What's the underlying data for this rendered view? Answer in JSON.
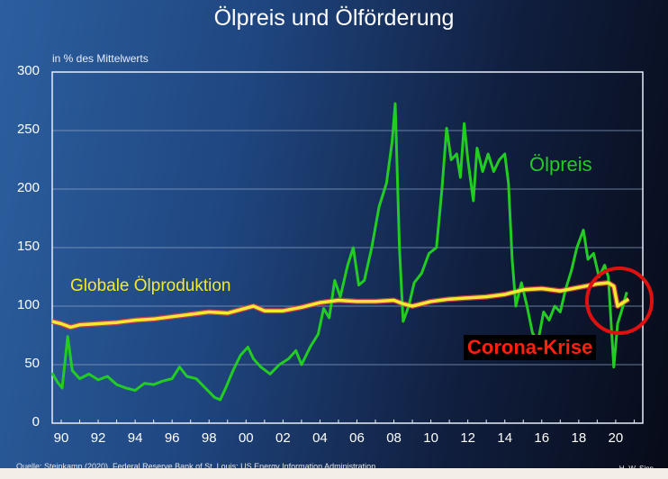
{
  "chart_data": {
    "type": "line",
    "title": "Ölpreis und Ölförderung",
    "ylabel": "in % des Mittelwerts",
    "xlabel": "",
    "ylim": [
      0,
      300
    ],
    "xlim": [
      1989.5,
      2021.5
    ],
    "yticks": [
      "0",
      "50",
      "100",
      "150",
      "200",
      "250",
      "300"
    ],
    "xticks": [
      "90",
      "92",
      "94",
      "96",
      "98",
      "00",
      "02",
      "04",
      "06",
      "08",
      "10",
      "12",
      "14",
      "16",
      "18",
      "20"
    ],
    "grid": true,
    "series": [
      {
        "name": "Ölpreis",
        "color": "#22cc22",
        "points": [
          [
            1989.5,
            43
          ],
          [
            1989.8,
            35
          ],
          [
            1990.05,
            30
          ],
          [
            1990.35,
            74
          ],
          [
            1990.6,
            45
          ],
          [
            1991,
            38
          ],
          [
            1991.5,
            42
          ],
          [
            1992,
            37
          ],
          [
            1992.5,
            40
          ],
          [
            1993,
            33
          ],
          [
            1993.5,
            30
          ],
          [
            1994,
            28
          ],
          [
            1994.5,
            34
          ],
          [
            1995,
            33
          ],
          [
            1995.5,
            36
          ],
          [
            1996,
            38
          ],
          [
            1996.4,
            48
          ],
          [
            1996.8,
            40
          ],
          [
            1997.3,
            38
          ],
          [
            1997.8,
            30
          ],
          [
            1998.3,
            22
          ],
          [
            1998.6,
            20
          ],
          [
            1998.9,
            30
          ],
          [
            1999.3,
            45
          ],
          [
            1999.7,
            58
          ],
          [
            2000.1,
            65
          ],
          [
            2000.4,
            55
          ],
          [
            2000.8,
            48
          ],
          [
            2001.3,
            42
          ],
          [
            2001.8,
            50
          ],
          [
            2002.3,
            55
          ],
          [
            2002.7,
            62
          ],
          [
            2003.0,
            50
          ],
          [
            2003.5,
            66
          ],
          [
            2003.9,
            76
          ],
          [
            2004.2,
            98
          ],
          [
            2004.5,
            90
          ],
          [
            2004.8,
            122
          ],
          [
            2005.1,
            108
          ],
          [
            2005.5,
            135
          ],
          [
            2005.8,
            150
          ],
          [
            2006.1,
            118
          ],
          [
            2006.4,
            122
          ],
          [
            2006.8,
            150
          ],
          [
            2007.2,
            185
          ],
          [
            2007.6,
            205
          ],
          [
            2007.9,
            240
          ],
          [
            2008.07,
            273
          ],
          [
            2008.3,
            150
          ],
          [
            2008.5,
            87
          ],
          [
            2008.8,
            100
          ],
          [
            2009.1,
            120
          ],
          [
            2009.5,
            128
          ],
          [
            2009.9,
            145
          ],
          [
            2010.3,
            150
          ],
          [
            2010.6,
            200
          ],
          [
            2010.85,
            252
          ],
          [
            2011.1,
            225
          ],
          [
            2011.4,
            230
          ],
          [
            2011.6,
            210
          ],
          [
            2011.8,
            256
          ],
          [
            2012.0,
            225
          ],
          [
            2012.3,
            190
          ],
          [
            2012.5,
            235
          ],
          [
            2012.8,
            215
          ],
          [
            2013.1,
            230
          ],
          [
            2013.4,
            215
          ],
          [
            2013.7,
            225
          ],
          [
            2014.0,
            230
          ],
          [
            2014.2,
            205
          ],
          [
            2014.4,
            140
          ],
          [
            2014.6,
            100
          ],
          [
            2014.9,
            120
          ],
          [
            2015.2,
            100
          ],
          [
            2015.5,
            77
          ],
          [
            2015.8,
            70
          ],
          [
            2016.1,
            95
          ],
          [
            2016.4,
            88
          ],
          [
            2016.7,
            100
          ],
          [
            2017.0,
            95
          ],
          [
            2017.3,
            115
          ],
          [
            2017.6,
            130
          ],
          [
            2017.9,
            150
          ],
          [
            2018.25,
            165
          ],
          [
            2018.5,
            140
          ],
          [
            2018.8,
            145
          ],
          [
            2019.1,
            125
          ],
          [
            2019.4,
            135
          ],
          [
            2019.6,
            125
          ],
          [
            2019.9,
            48
          ],
          [
            2020.1,
            85
          ],
          [
            2020.3,
            95
          ],
          [
            2020.6,
            112
          ]
        ]
      },
      {
        "name": "Globale Ölproduktion",
        "color": "#f4e830",
        "points": [
          [
            1989.5,
            87
          ],
          [
            1990.0,
            85
          ],
          [
            1990.5,
            82
          ],
          [
            1991,
            84
          ],
          [
            1992,
            85
          ],
          [
            1993,
            86
          ],
          [
            1994,
            88
          ],
          [
            1995,
            89
          ],
          [
            1996,
            91
          ],
          [
            1997,
            93
          ],
          [
            1998,
            95
          ],
          [
            1999,
            94
          ],
          [
            2000.4,
            100
          ],
          [
            2001,
            96
          ],
          [
            2002,
            96
          ],
          [
            2003,
            99
          ],
          [
            2004,
            103
          ],
          [
            2005,
            105
          ],
          [
            2006,
            104
          ],
          [
            2007,
            104
          ],
          [
            2008,
            105
          ],
          [
            2008.5,
            102
          ],
          [
            2009,
            100
          ],
          [
            2010,
            104
          ],
          [
            2011,
            106
          ],
          [
            2012,
            107
          ],
          [
            2013,
            108
          ],
          [
            2014,
            110
          ],
          [
            2015,
            114
          ],
          [
            2016,
            115
          ],
          [
            2017,
            113
          ],
          [
            2018,
            116
          ],
          [
            2019,
            119
          ],
          [
            2019.6,
            120
          ],
          [
            2019.9,
            117
          ],
          [
            2020.1,
            100
          ],
          [
            2020.4,
            103
          ],
          [
            2020.7,
            106
          ]
        ]
      }
    ],
    "annotations": [
      "Ölpreis",
      "Globale Ölproduktion",
      "Corona-Krise"
    ],
    "source": "Quelle: Steinkamp (2020), Federal Reserve Bank of St. Louis; US Energy Information Administration.",
    "author": "H.-W. Sinn"
  }
}
